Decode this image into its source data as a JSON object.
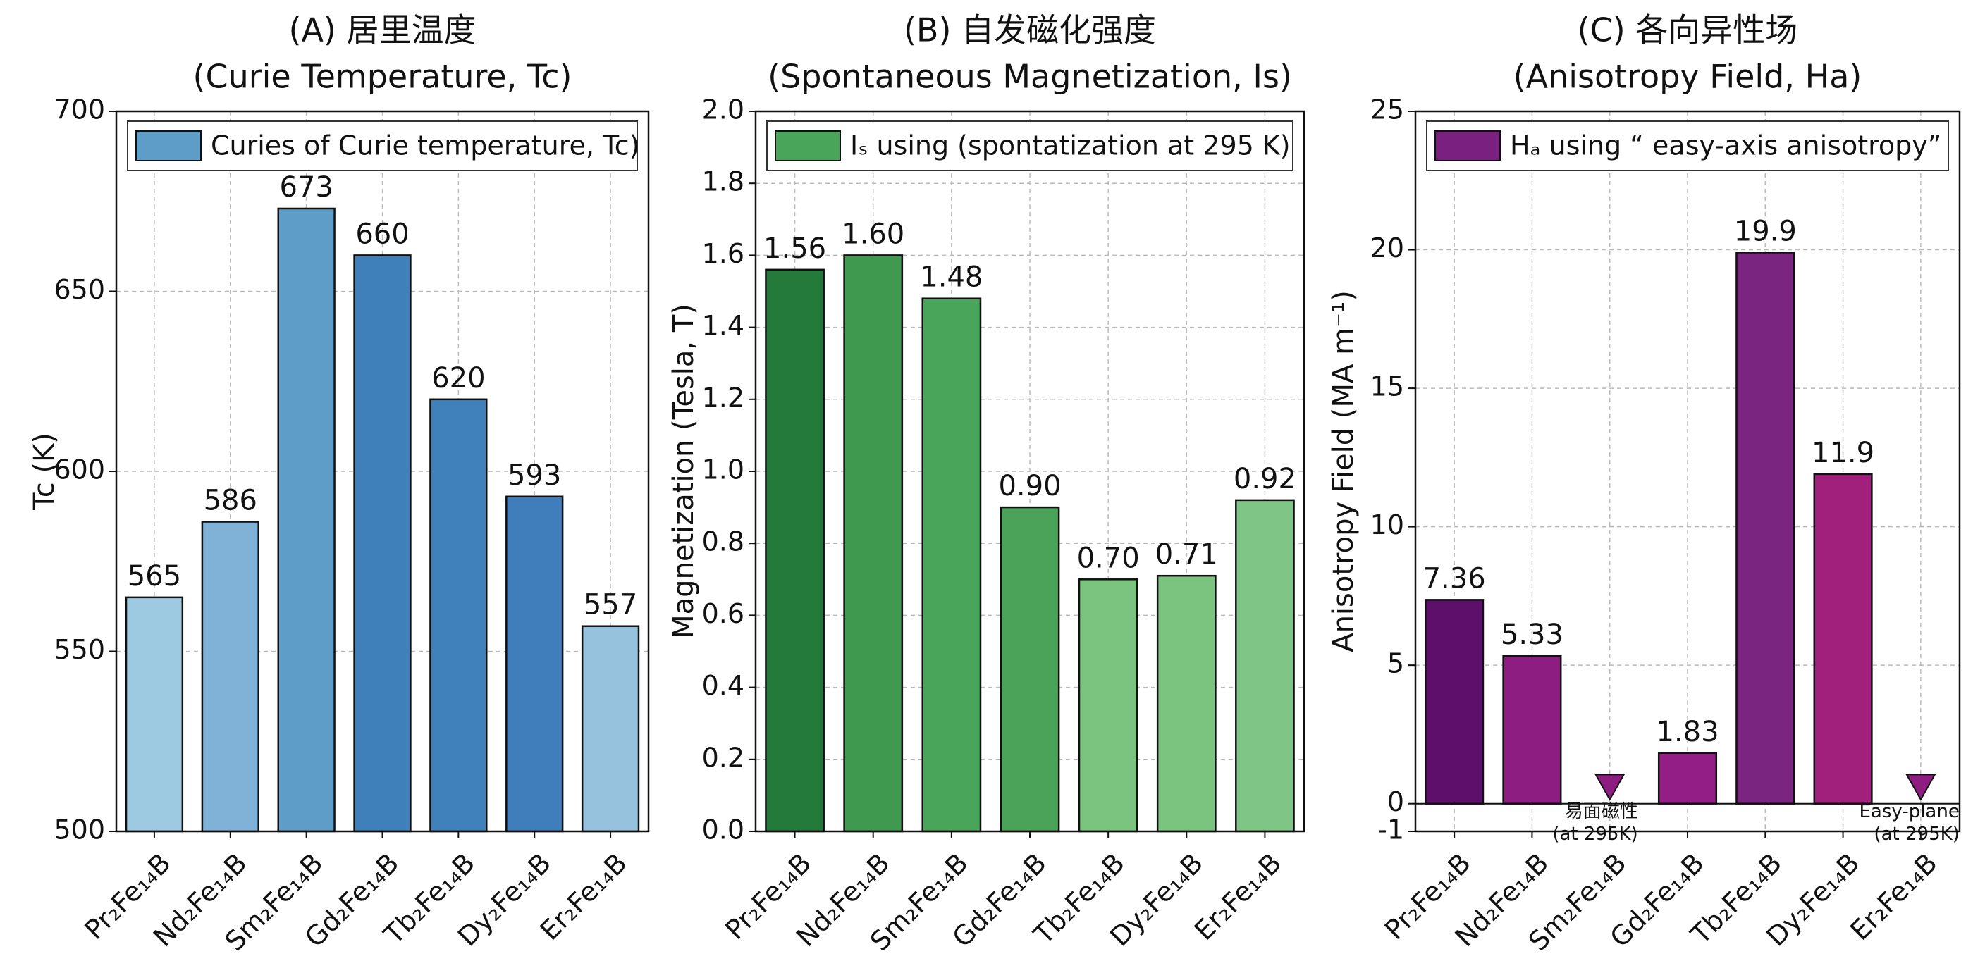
{
  "chart_data": [
    {
      "type": "bar",
      "title": "(A) 居里温度",
      "subtitle": "(Curie Temperature, Tc)",
      "ylabel": "Tc (K)",
      "legend": "Curies of Curie temperature, Tc)",
      "color": "#5e9dc8",
      "legend_position": "upper left",
      "categories": [
        "Pr₂Fe₁₄B",
        "Nd₂Fe₁₄B",
        "Sm₂Fe₁₄B",
        "Gd₂Fe₁₄B",
        "Tb₂Fe₁₄B",
        "Dy₂Fe₁₄B",
        "Er₂Fe₁₄B"
      ],
      "values": [
        565,
        586,
        673,
        660,
        620,
        593,
        557
      ],
      "colors": [
        "#9ecae1",
        "#7fb2d6",
        "#5e9dc8",
        "#3f7fba",
        "#4080bb",
        "#3f7dbb",
        "#97c2de"
      ],
      "ylim": [
        500,
        700
      ],
      "yticks": [
        500,
        550,
        600,
        650,
        700
      ],
      "grid": true
    },
    {
      "type": "bar",
      "title": "(B) 自发磁化强度",
      "subtitle": "(Spontaneous Magnetization, Is)",
      "ylabel": "Magnetization (Tesla, T)",
      "legend": "Iₛ using (spontatization at 295 K)",
      "color": "#49a55a",
      "legend_position": "upper left",
      "categories": [
        "Pr₂Fe₁₄B",
        "Nd₂Fe₁₄B",
        "Sm₂Fe₁₄B",
        "Gd₂Fe₁₄B",
        "Tb₂Fe₁₄B",
        "Dy₂Fe₁₄B",
        "Er₂Fe₁₄B"
      ],
      "values": [
        1.56,
        1.6,
        1.48,
        0.9,
        0.7,
        0.71,
        0.92
      ],
      "value_labels": [
        "1.56",
        "1.60",
        "1.48",
        "0.90",
        "0.70",
        "0.71",
        "0.92"
      ],
      "colors": [
        "#237a3b",
        "#3f9a50",
        "#49a55a",
        "#4aa358",
        "#7ac47f",
        "#7ac47f",
        "#7fc585"
      ],
      "ylim": [
        0,
        2.0
      ],
      "yticks": [
        {
          "value": 0,
          "label": "0.0"
        },
        0.2,
        0.4,
        0.6,
        0.8,
        {
          "value": 1,
          "label": "1.0"
        },
        1.2,
        1.4,
        1.6,
        1.8,
        {
          "value": 2,
          "label": "2.0"
        }
      ],
      "grid": true
    },
    {
      "type": "bar",
      "title": "(C) 各向异性场",
      "subtitle": "(Anisotropy Field, Ha)",
      "ylabel": "Anisotropy Field (MA m⁻¹)",
      "legend": "Hₐ using “ easy-axis anisotropy”",
      "color": "#7a2080",
      "legend_position": "upper left",
      "categories": [
        "Pr₂Fe₁₄B",
        "Nd₂Fe₁₄B",
        "Sm₂Fe₁₄B",
        "Gd₂Fe₁₄B",
        "Tb₂Fe₁₄B",
        "Dy₂Fe₁₄B",
        "Er₂Fe₁₄B"
      ],
      "values": [
        7.36,
        5.33,
        null,
        1.83,
        19.9,
        11.9,
        null
      ],
      "colors": [
        "#5e0f6b",
        "#8d1d80",
        "#8d1d80",
        "#931f86",
        "#7a2580",
        "#a0207c",
        "#8d1d80"
      ],
      "annotations": [
        [
          "易面磁性",
          "(at 295K)"
        ],
        [
          "Easy-plane",
          "(at 295K)"
        ]
      ],
      "ylim": [
        -1,
        25
      ],
      "yticks": [
        -1,
        0,
        5,
        10,
        15,
        20,
        25
      ],
      "grid": true
    }
  ]
}
